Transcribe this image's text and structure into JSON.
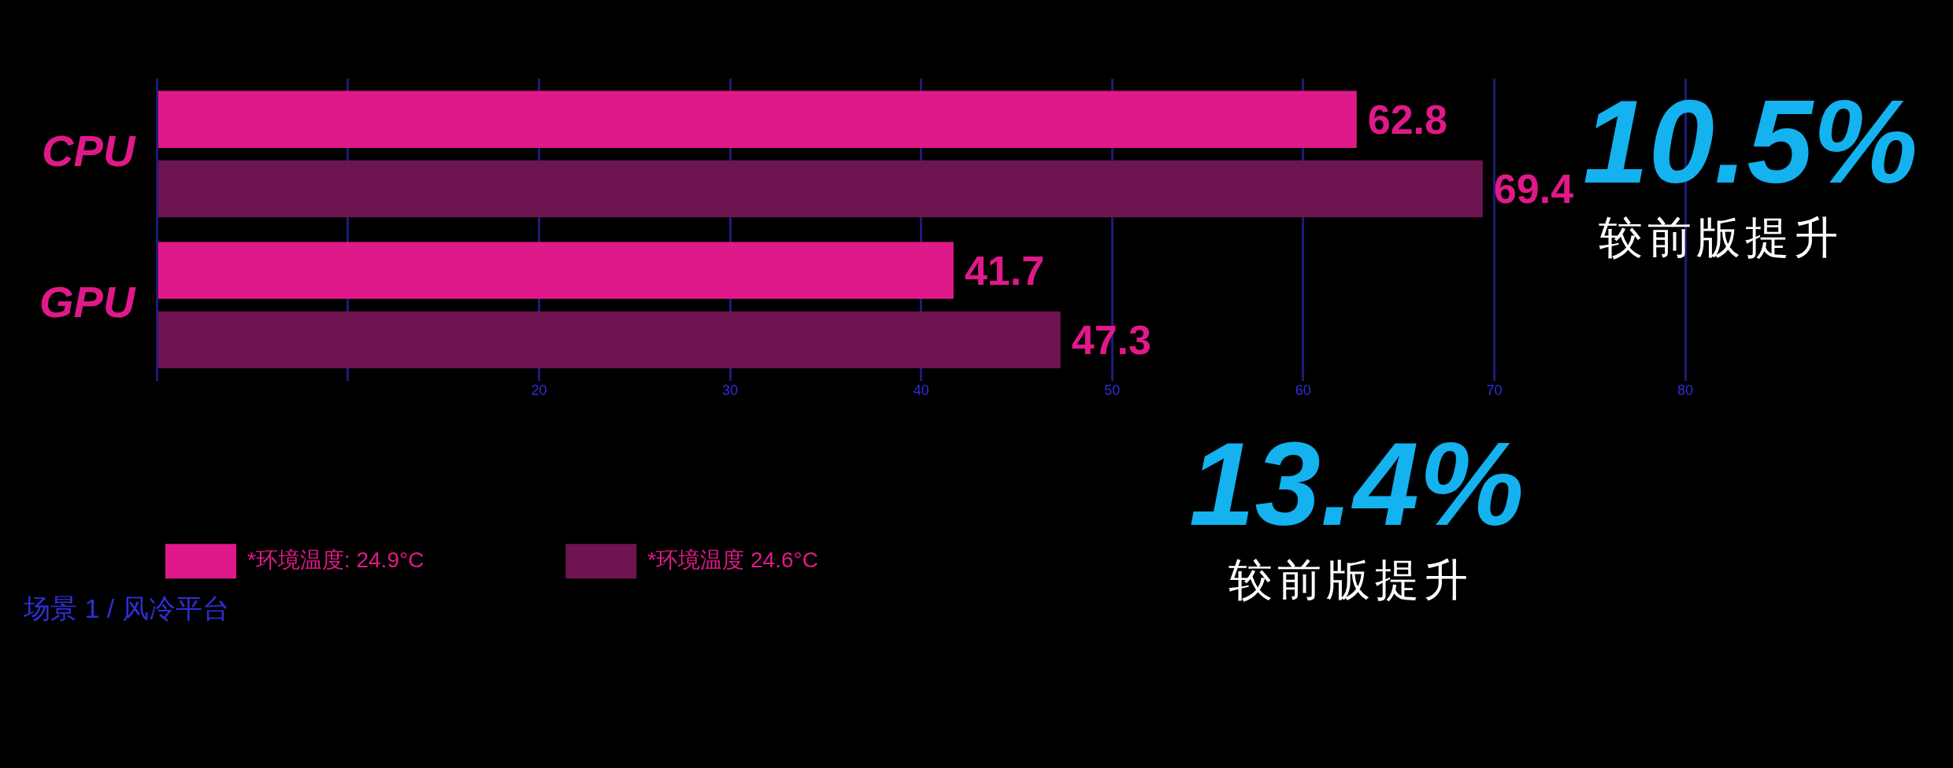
{
  "chart_data": {
    "type": "bar",
    "orientation": "horizontal",
    "subtitle": "场景 1 / 风冷平台",
    "categories": [
      "CPU",
      "GPU"
    ],
    "series": [
      {
        "name": "*环境温度: 24.9°C",
        "color": "#e0198a",
        "values": [
          62.8,
          41.7
        ]
      },
      {
        "name": "*环境温度 24.6°C",
        "color": "#6e1450",
        "values": [
          69.4,
          47.3
        ]
      }
    ],
    "xlim": [
      0,
      80
    ],
    "xticks": [
      {
        "value": 0,
        "label": null
      },
      {
        "value": 10,
        "label": null
      },
      20,
      30,
      40,
      50,
      60,
      70,
      80
    ],
    "grid": "x",
    "legend": "bottom left",
    "data_labels": true,
    "annotations": [
      "10.5%",
      "较前版提升",
      "13.4%",
      "较前版提升"
    ]
  }
}
